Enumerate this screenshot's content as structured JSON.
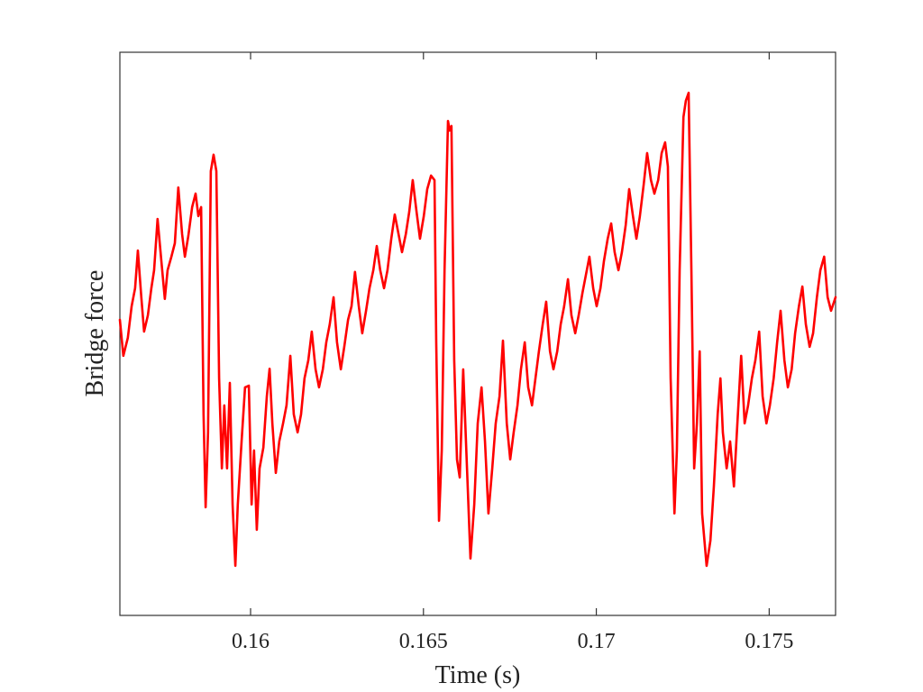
{
  "chart_data": {
    "type": "line",
    "x_label": "Time (s)",
    "y_label": "Bridge force",
    "xlim": [
      0.15622,
      0.17692
    ],
    "ylim": [
      0,
      100
    ],
    "xticks": [
      0.16,
      0.165,
      0.17,
      0.175
    ],
    "color": "#ff0000",
    "x": [
      0.15622,
      0.15632,
      0.15645,
      0.15656,
      0.15666,
      0.15674,
      0.15684,
      0.15692,
      0.15703,
      0.15713,
      0.15721,
      0.15731,
      0.15742,
      0.15752,
      0.1576,
      0.15771,
      0.15781,
      0.15791,
      0.15802,
      0.1581,
      0.1582,
      0.15831,
      0.15841,
      0.15849,
      0.15857,
      0.15864,
      0.1587,
      0.15877,
      0.15885,
      0.15893,
      0.15901,
      0.15909,
      0.15917,
      0.15924,
      0.15932,
      0.1594,
      0.15948,
      0.15956,
      0.15963,
      0.15974,
      0.15984,
      0.15995,
      0.16003,
      0.1601,
      0.16018,
      0.16026,
      0.16037,
      0.16047,
      0.16055,
      0.16063,
      0.16073,
      0.16083,
      0.16094,
      0.16104,
      0.16115,
      0.16125,
      0.16136,
      0.16146,
      0.16156,
      0.16167,
      0.16177,
      0.16188,
      0.16198,
      0.16209,
      0.16219,
      0.16229,
      0.1624,
      0.1625,
      0.16261,
      0.16271,
      0.16282,
      0.16292,
      0.16302,
      0.16313,
      0.16323,
      0.16334,
      0.16344,
      0.16355,
      0.16365,
      0.16375,
      0.16386,
      0.16396,
      0.16407,
      0.16417,
      0.16428,
      0.16438,
      0.16449,
      0.16459,
      0.16469,
      0.1648,
      0.1649,
      0.16501,
      0.16511,
      0.16522,
      0.16532,
      0.16537,
      0.16545,
      0.16553,
      0.16561,
      0.16571,
      0.16576,
      0.16581,
      0.16589,
      0.16597,
      0.16605,
      0.16615,
      0.16626,
      0.16636,
      0.16647,
      0.16657,
      0.16668,
      0.16678,
      0.16688,
      0.16699,
      0.16709,
      0.1672,
      0.1673,
      0.16741,
      0.16751,
      0.16761,
      0.16772,
      0.16782,
      0.16793,
      0.16803,
      0.16814,
      0.16824,
      0.16834,
      0.16845,
      0.16855,
      0.16866,
      0.16876,
      0.16887,
      0.16897,
      0.16907,
      0.16918,
      0.16928,
      0.16939,
      0.16949,
      0.1696,
      0.1697,
      0.1698,
      0.16991,
      0.17001,
      0.17012,
      0.17022,
      0.17033,
      0.17043,
      0.17053,
      0.17064,
      0.17074,
      0.17085,
      0.17095,
      0.17106,
      0.17116,
      0.17126,
      0.17137,
      0.17147,
      0.17158,
      0.17168,
      0.17179,
      0.17189,
      0.17199,
      0.17207,
      0.17215,
      0.17226,
      0.17233,
      0.17241,
      0.17252,
      0.17259,
      0.17267,
      0.17275,
      0.17283,
      0.17291,
      0.17299,
      0.17306,
      0.17319,
      0.1733,
      0.1734,
      0.17351,
      0.17359,
      0.17366,
      0.17377,
      0.17387,
      0.17398,
      0.17408,
      0.17419,
      0.17429,
      0.17439,
      0.1745,
      0.1746,
      0.17471,
      0.17481,
      0.17492,
      0.17502,
      0.17513,
      0.17523,
      0.17533,
      0.17544,
      0.17554,
      0.17565,
      0.17575,
      0.17586,
      0.17596,
      0.17606,
      0.17617,
      0.17627,
      0.17638,
      0.17648,
      0.17659,
      0.17669,
      0.17679,
      0.17692
    ],
    "values": [
      52.5,
      46.1,
      49.3,
      54.9,
      58.1,
      64.8,
      56.5,
      50.4,
      53.3,
      58.1,
      61.3,
      70.4,
      62.9,
      56.2,
      61.3,
      63.7,
      66.1,
      76.0,
      67.7,
      63.7,
      67.4,
      72.5,
      74.9,
      70.9,
      72.5,
      35.7,
      19.2,
      32.5,
      78.9,
      81.8,
      78.9,
      42.1,
      26.1,
      37.3,
      26.1,
      41.3,
      19.7,
      8.8,
      19.7,
      30.9,
      40.5,
      40.8,
      19.7,
      29.3,
      15.2,
      26.1,
      29.8,
      38.9,
      43.8,
      34.1,
      25.3,
      30.9,
      34.1,
      37.3,
      46.1,
      35.7,
      32.5,
      35.7,
      42.1,
      45.3,
      50.4,
      43.7,
      40.5,
      43.7,
      48.5,
      51.7,
      56.5,
      48.5,
      43.7,
      47.7,
      52.5,
      54.9,
      61.0,
      54.9,
      50.1,
      54.1,
      58.1,
      61.3,
      65.6,
      61.3,
      58.1,
      61.3,
      66.9,
      71.2,
      67.7,
      64.5,
      67.7,
      71.7,
      77.3,
      71.7,
      66.9,
      70.9,
      75.7,
      78.1,
      77.3,
      48.5,
      16.8,
      29.3,
      61.3,
      87.8,
      86.1,
      86.9,
      45.3,
      27.7,
      24.5,
      43.7,
      26.1,
      10.1,
      19.7,
      34.1,
      40.5,
      30.9,
      18.1,
      26.1,
      34.1,
      38.9,
      48.8,
      34.1,
      27.7,
      32.5,
      37.3,
      43.7,
      48.5,
      40.5,
      37.3,
      42.1,
      46.9,
      51.7,
      55.7,
      46.9,
      43.7,
      46.9,
      51.7,
      54.9,
      59.7,
      53.3,
      50.1,
      53.3,
      57.3,
      60.5,
      63.7,
      58.1,
      54.9,
      58.1,
      62.9,
      66.9,
      69.6,
      64.5,
      61.3,
      64.5,
      69.3,
      75.7,
      70.9,
      66.9,
      70.9,
      76.5,
      82.1,
      77.3,
      74.9,
      77.3,
      82.1,
      84.0,
      79.7,
      42.1,
      18.1,
      29.3,
      61.3,
      88.5,
      91.4,
      92.8,
      61.3,
      26.1,
      34.1,
      46.9,
      18.1,
      8.8,
      13.3,
      22.9,
      35.7,
      42.1,
      32.5,
      26.1,
      30.9,
      22.9,
      34.1,
      46.1,
      34.1,
      37.3,
      42.1,
      45.3,
      50.4,
      38.9,
      34.1,
      37.3,
      42.1,
      48.5,
      54.1,
      45.3,
      40.5,
      43.7,
      50.1,
      54.9,
      58.4,
      51.7,
      47.7,
      50.1,
      56.5,
      61.3,
      63.7,
      56.5,
      54.1,
      56.5
    ]
  }
}
